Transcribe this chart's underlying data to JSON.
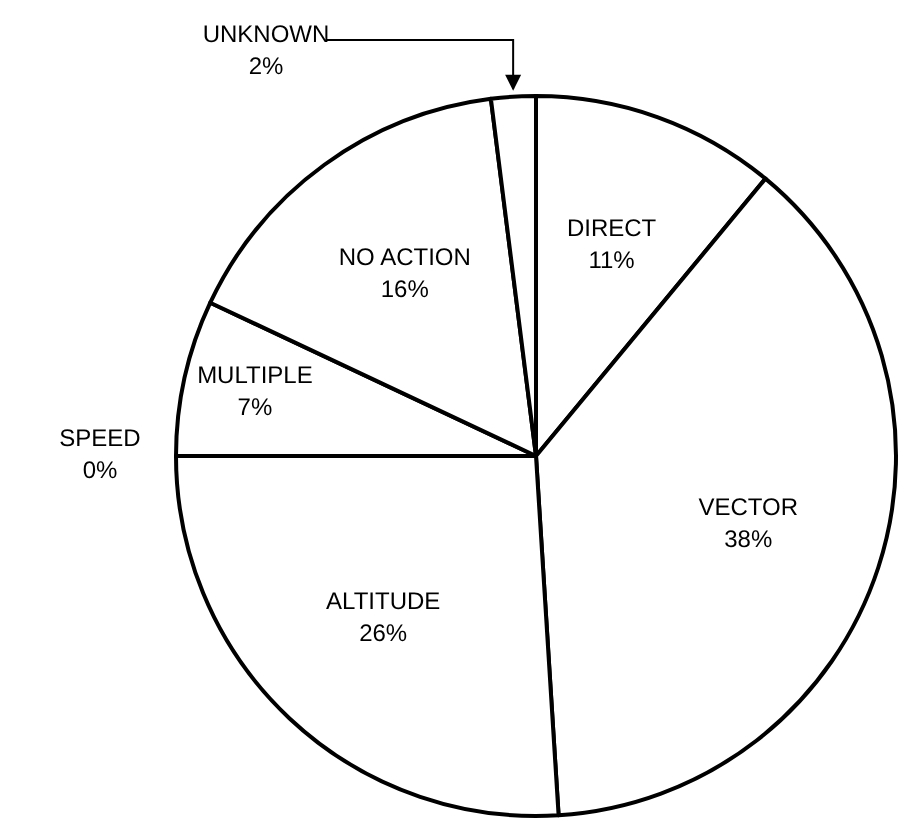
{
  "chart_data": {
    "type": "pie",
    "categories": [
      "DIRECT",
      "VECTOR",
      "ALTITUDE",
      "SPEED",
      "MULTIPLE",
      "NO ACTION",
      "UNKNOWN"
    ],
    "values": [
      11,
      38,
      26,
      0,
      7,
      16,
      2
    ],
    "value_labels": [
      "11%",
      "38%",
      "26%",
      "0%",
      "7%",
      "16%",
      "2%"
    ],
    "colors": [
      "#ffffff",
      "#ffffff",
      "#ffffff",
      "#ffffff",
      "#ffffff",
      "#ffffff",
      "#ffffff"
    ]
  }
}
